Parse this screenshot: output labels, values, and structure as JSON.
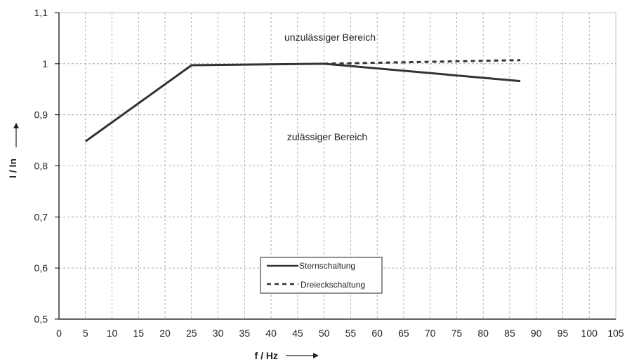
{
  "chart_data": {
    "type": "line",
    "xlabel": "f / Hz",
    "ylabel": "I / In",
    "xlim": [
      0,
      105
    ],
    "ylim": [
      0.5,
      1.1
    ],
    "x_ticks": [
      0,
      5,
      10,
      15,
      20,
      25,
      30,
      35,
      40,
      45,
      50,
      55,
      60,
      65,
      70,
      75,
      80,
      85,
      90,
      95,
      100,
      105
    ],
    "y_ticks": [
      0.5,
      0.6,
      0.7,
      0.8,
      0.9,
      1.0,
      1.1
    ],
    "y_tick_labels": [
      "0,5",
      "0,6",
      "0,7",
      "0,8",
      "0,9",
      "1",
      "1,1"
    ],
    "grid": true,
    "legend_position": "bottom-center",
    "annotations": {
      "upper": "unzulässiger Bereich",
      "lower": "zulässiger Bereich"
    },
    "series": [
      {
        "name": "Sternschaltung",
        "style": "solid",
        "x": [
          5,
          25,
          50,
          87
        ],
        "y": [
          0.848,
          0.997,
          1.0,
          0.966
        ]
      },
      {
        "name": "Dreieckschaltung",
        "style": "dashed",
        "x": [
          50,
          87
        ],
        "y": [
          1.0,
          1.007
        ]
      }
    ],
    "colors": {
      "line": "#333333",
      "grid": "#9a9a9a",
      "axis": "#000000"
    }
  }
}
